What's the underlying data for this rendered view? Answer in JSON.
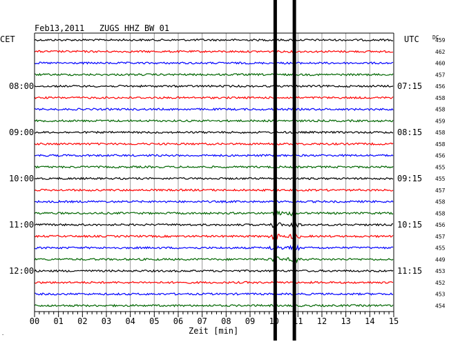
{
  "header": {
    "title": "Feb13,2011   ZUGS HHZ BW 01",
    "left_zone": "CET",
    "right_zone": "UTC",
    "dc_label": "DC"
  },
  "colors": {
    "trace_cycle": [
      "#000000",
      "#ff0000",
      "#0000ff",
      "#006600"
    ],
    "grid": "#999999",
    "frame": "#000000",
    "event": "#000000"
  },
  "time_labels": {
    "cet": [
      "08:00",
      "09:00",
      "10:00",
      "11:00",
      "12:00"
    ],
    "utc": [
      "07:15",
      "08:15",
      "09:15",
      "10:15",
      "11:15"
    ],
    "every_n_traces": 4,
    "first_labeled_trace": 4
  },
  "traces": {
    "count": 24,
    "dc_offsets": [
      "459",
      "462",
      "460",
      "457",
      "456",
      "458",
      "458",
      "459",
      "458",
      "458",
      "456",
      "455",
      "455",
      "457",
      "458",
      "458",
      "456",
      "457",
      "455",
      "449",
      "453",
      "452",
      "453",
      "454"
    ]
  },
  "x_axis": {
    "label": "Zeit [min]",
    "min": 0,
    "max": 15,
    "tick_labels": [
      "00",
      "01",
      "02",
      "03",
      "04",
      "05",
      "06",
      "07",
      "08",
      "09",
      "10",
      "11",
      "12",
      "13",
      "14",
      "15"
    ],
    "minor_per_minute": 5
  },
  "event": {
    "marker_minutes": [
      10.05,
      10.85
    ],
    "large_amplitude_traces": [
      15,
      16,
      17,
      18,
      19
    ]
  },
  "corner_mark": "."
}
